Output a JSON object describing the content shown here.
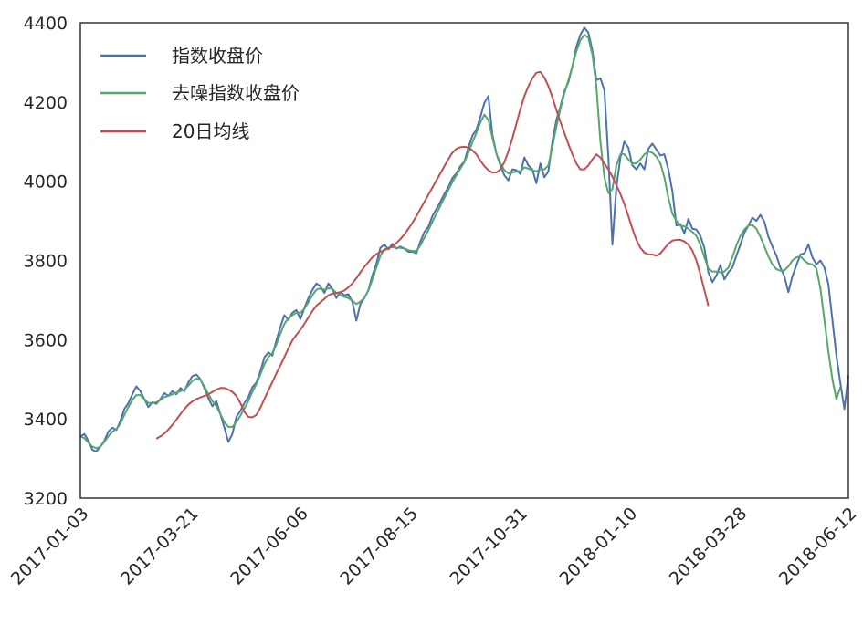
{
  "chart_data": {
    "type": "line",
    "title": "",
    "xlabel": "",
    "ylabel": "",
    "ylim": [
      3200,
      4400
    ],
    "yticks": [
      3200,
      3400,
      3600,
      3800,
      4000,
      4200,
      4400
    ],
    "xtick_labels": [
      "2017-01-03",
      "2017-03-21",
      "2017-06-06",
      "2017-08-15",
      "2017-10-31",
      "2018-01-10",
      "2018-03-28",
      "2018-06-12"
    ],
    "grid": false,
    "legend_position": "upper-left",
    "series": [
      {
        "name": "指数收盘价",
        "color": "#4c72b0",
        "values": [
          3355,
          3362,
          3345,
          3322,
          3318,
          3330,
          3345,
          3368,
          3378,
          3372,
          3395,
          3425,
          3440,
          3462,
          3482,
          3470,
          3450,
          3430,
          3442,
          3438,
          3450,
          3465,
          3458,
          3470,
          3462,
          3478,
          3470,
          3492,
          3508,
          3512,
          3500,
          3478,
          3452,
          3432,
          3445,
          3412,
          3378,
          3342,
          3362,
          3405,
          3420,
          3440,
          3455,
          3480,
          3492,
          3520,
          3555,
          3568,
          3560,
          3598,
          3632,
          3662,
          3650,
          3668,
          3675,
          3652,
          3680,
          3705,
          3725,
          3742,
          3735,
          3718,
          3742,
          3728,
          3705,
          3720,
          3712,
          3715,
          3695,
          3648,
          3690,
          3705,
          3725,
          3762,
          3792,
          3832,
          3840,
          3828,
          3842,
          3830,
          3835,
          3830,
          3822,
          3822,
          3818,
          3848,
          3872,
          3885,
          3912,
          3930,
          3948,
          3968,
          3985,
          4008,
          4020,
          4038,
          4050,
          4085,
          4115,
          4130,
          4162,
          4198,
          4215,
          4118,
          4070,
          4040,
          4015,
          4002,
          4030,
          4028,
          4018,
          4060,
          4040,
          4030,
          3995,
          4045,
          4010,
          4025,
          4100,
          4155,
          4188,
          4228,
          4250,
          4290,
          4340,
          4370,
          4388,
          4375,
          4330,
          4255,
          4260,
          4230,
          4060,
          3840,
          3985,
          4060,
          4100,
          4085,
          4040,
          4030,
          4045,
          4030,
          4082,
          4095,
          4080,
          4065,
          4068,
          4030,
          3975,
          3888,
          3892,
          3868,
          3905,
          3880,
          3878,
          3862,
          3832,
          3770,
          3745,
          3762,
          3788,
          3752,
          3770,
          3782,
          3812,
          3840,
          3870,
          3888,
          3908,
          3900,
          3915,
          3898,
          3860,
          3835,
          3812,
          3782,
          3760,
          3720,
          3760,
          3788,
          3815,
          3818,
          3840,
          3808,
          3790,
          3800,
          3782,
          3740,
          3650,
          3560,
          3490,
          3425,
          3510
        ]
      },
      {
        "name": "去噪指数收盘价",
        "color": "#55a868",
        "values": [
          3355,
          3352,
          3340,
          3330,
          3326,
          3330,
          3342,
          3356,
          3368,
          3374,
          3388,
          3410,
          3430,
          3448,
          3460,
          3460,
          3450,
          3440,
          3440,
          3442,
          3448,
          3455,
          3458,
          3462,
          3466,
          3470,
          3474,
          3484,
          3496,
          3502,
          3498,
          3482,
          3462,
          3445,
          3432,
          3412,
          3392,
          3380,
          3380,
          3392,
          3408,
          3426,
          3445,
          3468,
          3488,
          3512,
          3538,
          3556,
          3566,
          3588,
          3615,
          3640,
          3654,
          3662,
          3668,
          3668,
          3678,
          3695,
          3712,
          3726,
          3730,
          3726,
          3730,
          3728,
          3718,
          3712,
          3708,
          3705,
          3698,
          3690,
          3696,
          3706,
          3724,
          3752,
          3782,
          3812,
          3828,
          3832,
          3834,
          3832,
          3832,
          3830,
          3826,
          3824,
          3824,
          3838,
          3858,
          3876,
          3898,
          3918,
          3938,
          3958,
          3978,
          3998,
          4015,
          4032,
          4048,
          4072,
          4098,
          4122,
          4148,
          4168,
          4155,
          4110,
          4070,
          4045,
          4028,
          4020,
          4022,
          4025,
          4025,
          4035,
          4032,
          4028,
          4025,
          4030,
          4030,
          4040,
          4088,
          4138,
          4182,
          4222,
          4255,
          4290,
          4328,
          4356,
          4370,
          4362,
          4320,
          4240,
          4100,
          4010,
          3970,
          3980,
          4040,
          4068,
          4068,
          4055,
          4045,
          4045,
          4055,
          4068,
          4075,
          4072,
          4062,
          4045,
          4010,
          3958,
          3918,
          3900,
          3888,
          3886,
          3880,
          3872,
          3862,
          3840,
          3808,
          3780,
          3772,
          3772,
          3770,
          3772,
          3782,
          3808,
          3838,
          3862,
          3878,
          3888,
          3890,
          3880,
          3860,
          3835,
          3810,
          3790,
          3778,
          3774,
          3775,
          3785,
          3800,
          3808,
          3810,
          3800,
          3792,
          3790,
          3780,
          3730,
          3650,
          3570,
          3500,
          3450,
          3480
        ]
      },
      {
        "name": "20日均线",
        "color": "#c44e52",
        "values": [
          null,
          null,
          null,
          null,
          null,
          null,
          null,
          null,
          null,
          null,
          null,
          null,
          null,
          null,
          null,
          null,
          null,
          null,
          null,
          3350,
          3356,
          3363,
          3373,
          3385,
          3398,
          3412,
          3425,
          3436,
          3444,
          3450,
          3454,
          3458,
          3462,
          3468,
          3474,
          3478,
          3478,
          3474,
          3468,
          3458,
          3440,
          3418,
          3405,
          3404,
          3410,
          3428,
          3450,
          3472,
          3493,
          3515,
          3535,
          3556,
          3578,
          3598,
          3612,
          3625,
          3640,
          3656,
          3672,
          3686,
          3694,
          3703,
          3712,
          3716,
          3718,
          3720,
          3724,
          3732,
          3742,
          3755,
          3770,
          3784,
          3796,
          3808,
          3816,
          3822,
          3826,
          3830,
          3836,
          3844,
          3854,
          3866,
          3880,
          3895,
          3912,
          3930,
          3948,
          3966,
          3984,
          4002,
          4020,
          4038,
          4056,
          4072,
          4082,
          4086,
          4087,
          4085,
          4078,
          4068,
          4052,
          4038,
          4028,
          4022,
          4022,
          4030,
          4048,
          4076,
          4108,
          4145,
          4182,
          4215,
          4240,
          4260,
          4274,
          4276,
          4262,
          4240,
          4212,
          4180,
          4150,
          4122,
          4094,
          4068,
          4045,
          4030,
          4030,
          4040,
          4055,
          4068,
          4060,
          4045,
          4030,
          4012,
          3990,
          3968,
          3942,
          3912,
          3880,
          3852,
          3832,
          3820,
          3815,
          3815,
          3812,
          3818,
          3830,
          3842,
          3850,
          3852,
          3852,
          3848,
          3840,
          3825,
          3800,
          3765,
          3725,
          3685
        ]
      }
    ]
  }
}
